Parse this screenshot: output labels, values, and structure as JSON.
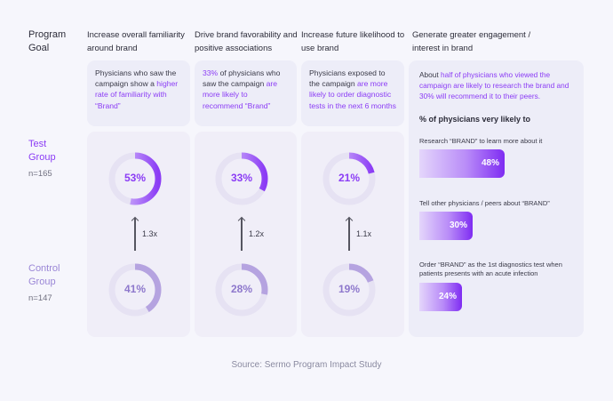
{
  "program_goal_label": "Program Goal",
  "columns": [
    {
      "heading": "Increase overall familiarity around brand",
      "summary_parts": [
        "Physicians who saw the campaign show a ",
        "higher rate of familiarity with “Brand”"
      ],
      "test_value": 53,
      "test_label": "53%",
      "control_value": 41,
      "control_label": "41%",
      "multiplier": "1.3x"
    },
    {
      "heading": "Drive brand favorability and positive associations",
      "summary_parts": [
        "33%",
        " of physicians who saw the campaign ",
        "are more likely to recommend “Brand”"
      ],
      "test_value": 33,
      "test_label": "33%",
      "control_value": 28,
      "control_label": "28%",
      "multiplier": "1.2x"
    },
    {
      "heading": "Increase future likelihood to use brand",
      "summary_parts": [
        "Physicians exposed to the campaign ",
        "are more likely to order diagnostic tests in the next 6 months"
      ],
      "test_value": 21,
      "test_label": "21%",
      "control_value": 19,
      "control_label": "19%",
      "multiplier": "1.1x"
    }
  ],
  "groups": {
    "test": {
      "label": "Test Group",
      "n": "n=165"
    },
    "control": {
      "label": "Control Group",
      "n": "n=147"
    }
  },
  "engagement": {
    "heading": "Generate greater engagement / interest in brand",
    "intro_prefix": "About ",
    "intro_highlight": "half of physicians who viewed the campaign are likely to research the brand and 30% will recommend it to their peers.",
    "subheading": "% of physicians very likely to",
    "items": [
      {
        "label": "Research “BRAND” to learn more about it",
        "value": 48,
        "value_label": "48%"
      },
      {
        "label": "Tell other physicians / peers about “BRAND”",
        "value": 30,
        "value_label": "30%"
      },
      {
        "label": "Order “BRAND” as the 1st diagnostics test when patients presents with an acute infection",
        "value": 24,
        "value_label": "24%"
      }
    ]
  },
  "source": "Source: Sermo Program Impact Study",
  "colors": {
    "accent": "#8b3cf5",
    "control": "#b5a3e0",
    "track": "#e6e2f3"
  }
}
